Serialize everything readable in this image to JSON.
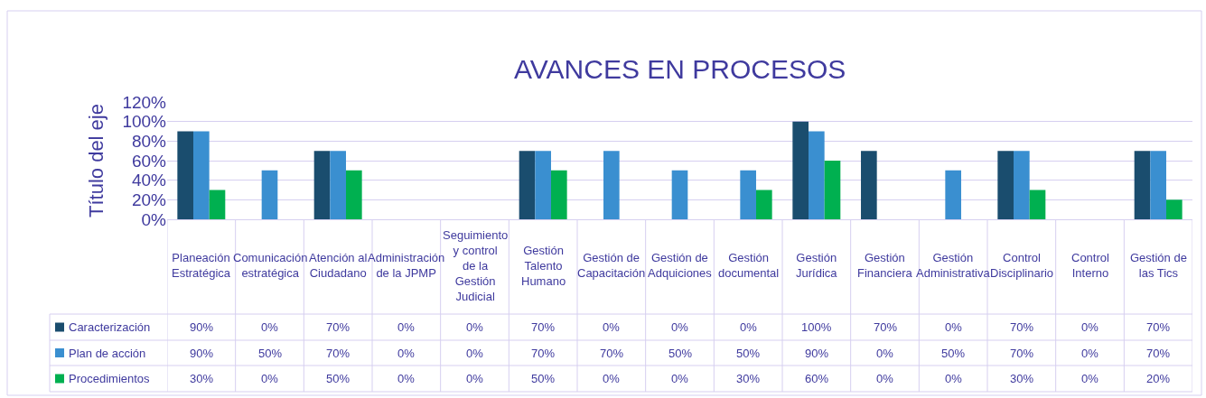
{
  "chart_data": {
    "type": "bar",
    "title": "AVANCES EN PROCESOS",
    "ylabel": "Título del eje",
    "categories": [
      "Planeación Estratégica",
      "Comunicación estratégica",
      "Atención al Ciudadano",
      "Administración de la JPMP",
      "Seguimiento y control de la Gestión Judicial",
      "Gestión Talento Humano",
      "Gestión de Capacitación",
      "Gestión de Adquiciones",
      "Gestión documental",
      "Gestión Jurídica",
      "Gestión Financiera",
      "Gestión Administrativa",
      "Control Disciplinario",
      "Control Interno",
      "Gestión de las Tics"
    ],
    "series": [
      {
        "name": "Caracterización",
        "color": "#1a4d6e",
        "values": [
          90,
          0,
          70,
          0,
          0,
          70,
          0,
          0,
          0,
          100,
          70,
          0,
          70,
          0,
          70
        ],
        "value_labels": [
          "90%",
          "0%",
          "70%",
          "0%",
          "0%",
          "70%",
          "0%",
          "0%",
          "0%",
          "100%",
          "70%",
          "0%",
          "70%",
          "0%",
          "70%"
        ]
      },
      {
        "name": "Plan de acción",
        "color": "#3a8fd0",
        "values": [
          90,
          50,
          70,
          0,
          0,
          70,
          70,
          50,
          50,
          90,
          0,
          50,
          70,
          0,
          70
        ],
        "value_labels": [
          "90%",
          "50%",
          "70%",
          "0%",
          "0%",
          "70%",
          "70%",
          "50%",
          "50%",
          "90%",
          "0%",
          "50%",
          "70%",
          "0%",
          "70%"
        ]
      },
      {
        "name": "Procedimientos",
        "color": "#00b050",
        "values": [
          30,
          0,
          50,
          0,
          0,
          50,
          0,
          0,
          30,
          60,
          0,
          0,
          30,
          0,
          20
        ],
        "value_labels": [
          "30%",
          "0%",
          "50%",
          "0%",
          "0%",
          "50%",
          "0%",
          "0%",
          "30%",
          "60%",
          "0%",
          "0%",
          "30%",
          "0%",
          "20%"
        ]
      }
    ],
    "ylim": [
      0,
      120
    ],
    "yticks": [
      {
        "value": 0,
        "label": "0%"
      },
      {
        "value": 20,
        "label": "20%"
      },
      {
        "value": 40,
        "label": "40%"
      },
      {
        "value": 60,
        "label": "60%"
      },
      {
        "value": 80,
        "label": "80%"
      },
      {
        "value": 100,
        "label": "100%"
      },
      {
        "value": 120,
        "label": "120%"
      }
    ],
    "grid": "y",
    "legend": "bottom left"
  }
}
